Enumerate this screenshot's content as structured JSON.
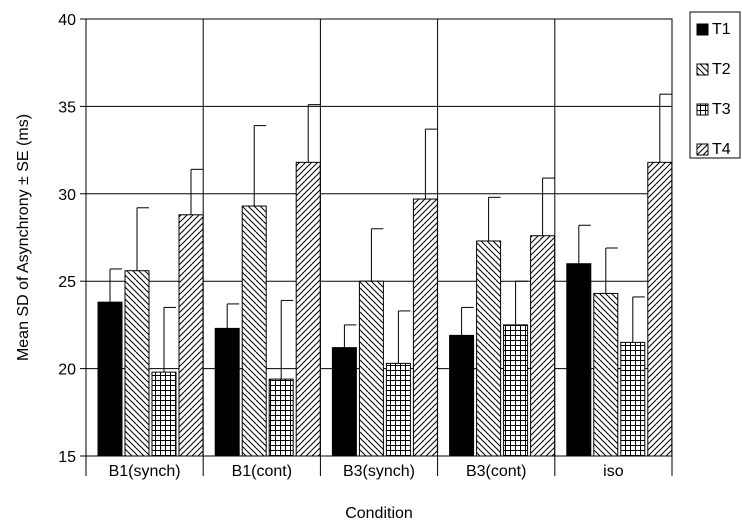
{
  "chart_data": {
    "type": "bar",
    "xlabel": "Condition",
    "ylabel": "Mean SD of Asynchrony ± SE (ms)",
    "ylim": [
      15,
      40
    ],
    "yticks": [
      15,
      20,
      25,
      30,
      35,
      40
    ],
    "grid": true,
    "legend_position": "right",
    "categories": [
      "B1(synch)",
      "B1(cont)",
      "B3(synch)",
      "B3(cont)",
      "iso"
    ],
    "series": [
      {
        "name": "T1",
        "pattern": "solid",
        "values": [
          23.8,
          22.3,
          21.2,
          21.9,
          26.0
        ],
        "errors": [
          1.9,
          1.4,
          1.3,
          1.6,
          2.2
        ]
      },
      {
        "name": "T2",
        "pattern": "backslash",
        "values": [
          25.6,
          29.3,
          25.0,
          27.3,
          24.3
        ],
        "errors": [
          3.6,
          4.6,
          3.0,
          2.5,
          2.6
        ]
      },
      {
        "name": "T3",
        "pattern": "grid",
        "values": [
          19.8,
          19.4,
          20.3,
          22.5,
          21.5
        ],
        "errors": [
          3.7,
          4.5,
          3.0,
          2.5,
          2.6
        ]
      },
      {
        "name": "T4",
        "pattern": "slash",
        "values": [
          28.8,
          31.8,
          29.7,
          27.6,
          31.8
        ],
        "errors": [
          2.6,
          3.3,
          4.0,
          3.3,
          3.9
        ]
      }
    ],
    "colors": {
      "stroke": "#000000",
      "fill_solid": "#000000",
      "background": "#ffffff"
    }
  }
}
